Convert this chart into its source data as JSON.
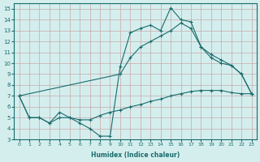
{
  "xlabel": "Humidex (Indice chaleur)",
  "xlim": [
    -0.5,
    23.5
  ],
  "ylim": [
    3,
    15.5
  ],
  "xticks": [
    0,
    1,
    2,
    3,
    4,
    5,
    6,
    7,
    8,
    9,
    10,
    11,
    12,
    13,
    14,
    15,
    16,
    17,
    18,
    19,
    20,
    21,
    22,
    23
  ],
  "yticks": [
    3,
    4,
    5,
    6,
    7,
    8,
    9,
    10,
    11,
    12,
    13,
    14,
    15
  ],
  "bg_color": "#d4eeee",
  "line_color": "#1a6b6b",
  "grid_color": "#c8a8a8",
  "line1_x": [
    0,
    1,
    2,
    3,
    4,
    5,
    6,
    7,
    8,
    9,
    10,
    11,
    12,
    13,
    14,
    15,
    16,
    17,
    18,
    19,
    20,
    21,
    22,
    23
  ],
  "line1_y": [
    7.0,
    5.0,
    5.0,
    4.5,
    5.5,
    5.0,
    4.5,
    4.0,
    3.3,
    3.3,
    9.7,
    12.8,
    13.2,
    13.5,
    13.0,
    15.1,
    14.0,
    13.8,
    11.5,
    10.5,
    10.0,
    9.8,
    9.0,
    7.2
  ],
  "line2_x": [
    0,
    10,
    11,
    12,
    13,
    14,
    15,
    16,
    17,
    18,
    19,
    20,
    21,
    22,
    23
  ],
  "line2_y": [
    7.0,
    9.0,
    10.5,
    11.5,
    12.0,
    12.5,
    13.0,
    13.7,
    13.2,
    11.5,
    10.8,
    10.3,
    9.8,
    9.0,
    7.2
  ],
  "line3_x": [
    0,
    1,
    2,
    3,
    4,
    5,
    6,
    7,
    8,
    9,
    10,
    11,
    12,
    13,
    14,
    15,
    16,
    17,
    18,
    19,
    20,
    21,
    22,
    23
  ],
  "line3_y": [
    7.0,
    5.0,
    5.0,
    4.5,
    5.0,
    5.0,
    4.8,
    4.8,
    5.2,
    5.5,
    5.7,
    6.0,
    6.2,
    6.5,
    6.7,
    7.0,
    7.2,
    7.4,
    7.5,
    7.5,
    7.5,
    7.3,
    7.2,
    7.2
  ]
}
